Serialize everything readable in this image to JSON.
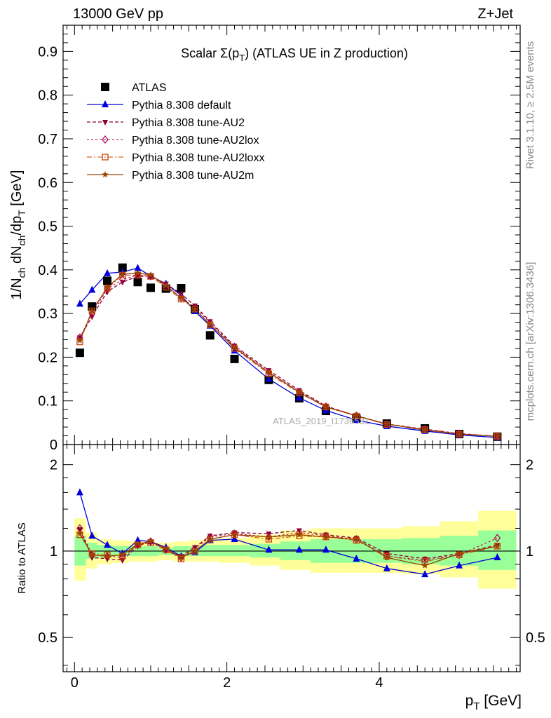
{
  "header": {
    "left": "13000 GeV pp",
    "right": "Z+Jet"
  },
  "side_labels": {
    "rivet": "Rivet 3.1.10, ≥ 2.5M events",
    "mcplots": "mcplots.cern.ch [arXiv:1306.3436]"
  },
  "watermark": "ATLAS_2019_I1736531",
  "colors": {
    "atlas": "#000000",
    "default": "#0000dd",
    "au2": "#880033",
    "au2lox": "#aa0055",
    "au2loxx": "#cc4400",
    "au2m": "#994400",
    "band_yellow": "#ffff99",
    "band_green": "#99ff99"
  },
  "chart_data": [
    {
      "type": "scatter",
      "title": "Scalar Σ(p_T) (ATLAS UE in Z production)",
      "title_parts": {
        "pre": "Scalar Σ(p",
        "sub": "T",
        "post": ") (ATLAS UE in Z production)"
      },
      "ylabel": "1/N_ch dN_ch/dp_T [GeV]",
      "ylabel_parts": {
        "a": "1/N",
        "a_sub": "ch",
        "b": " dN",
        "b_sub": "ch",
        "c": "/dp",
        "c_sub": "T",
        "d": " [GeV]"
      },
      "xlim": [
        -0.15,
        5.85
      ],
      "ylim": [
        0,
        0.96
      ],
      "yticks": [
        0,
        0.1,
        0.2,
        0.3,
        0.4,
        0.5,
        0.6,
        0.7,
        0.8,
        0.9
      ],
      "ytick_labels": [
        "0",
        "0.1",
        "0.2",
        "0.3",
        "0.4",
        "0.5",
        "0.6",
        "0.7",
        "0.8",
        "0.9"
      ],
      "legend_position": "top-left",
      "x": [
        0.07,
        0.23,
        0.43,
        0.63,
        0.83,
        1.0,
        1.2,
        1.4,
        1.58,
        1.78,
        2.1,
        2.55,
        2.95,
        3.3,
        3.7,
        4.1,
        4.6,
        5.05,
        5.55
      ],
      "series": [
        {
          "name": "ATLAS",
          "key": "atlas",
          "marker": "square",
          "values": [
            0.21,
            0.316,
            0.375,
            0.405,
            0.372,
            0.359,
            0.357,
            0.358,
            0.31,
            0.25,
            0.196,
            0.148,
            0.106,
            0.077,
            0.06,
            0.048,
            0.037,
            0.024,
            0.018
          ]
        },
        {
          "name": "Pythia 8.308 default",
          "key": "default",
          "marker": "triangle",
          "values": [
            0.322,
            0.354,
            0.392,
            0.395,
            0.404,
            0.386,
            0.368,
            0.342,
            0.305,
            0.272,
            0.215,
            0.15,
            0.107,
            0.078,
            0.056,
            0.042,
            0.031,
            0.022,
            0.016
          ]
        },
        {
          "name": "Pythia 8.308 tune-AU2",
          "key": "au2",
          "marker": "triangle-down",
          "values": [
            0.245,
            0.293,
            0.35,
            0.372,
            0.385,
            0.386,
            0.368,
            0.345,
            0.318,
            0.282,
            0.226,
            0.17,
            0.124,
            0.088,
            0.066,
            0.047,
            0.035,
            0.025,
            0.019
          ]
        },
        {
          "name": "Pythia 8.308 tune-AU2lox",
          "key": "au2lox",
          "marker": "diamond",
          "values": [
            0.245,
            0.3,
            0.356,
            0.378,
            0.388,
            0.385,
            0.362,
            0.336,
            0.314,
            0.279,
            0.224,
            0.166,
            0.121,
            0.087,
            0.066,
            0.046,
            0.035,
            0.025,
            0.019
          ]
        },
        {
          "name": "Pythia 8.308 tune-AU2loxx",
          "key": "au2loxx",
          "marker": "square-open",
          "values": [
            0.235,
            0.306,
            0.358,
            0.388,
            0.388,
            0.385,
            0.36,
            0.333,
            0.31,
            0.274,
            0.22,
            0.162,
            0.118,
            0.086,
            0.065,
            0.046,
            0.034,
            0.024,
            0.019
          ]
        },
        {
          "name": "Pythia 8.308 tune-AU2m",
          "key": "au2m",
          "marker": "star",
          "values": [
            0.238,
            0.306,
            0.36,
            0.39,
            0.393,
            0.388,
            0.364,
            0.336,
            0.31,
            0.275,
            0.222,
            0.165,
            0.12,
            0.086,
            0.066,
            0.047,
            0.033,
            0.024,
            0.019
          ]
        }
      ]
    },
    {
      "type": "line",
      "ylabel": "Ratio to ATLAS",
      "xlabel": "p_T [GeV]",
      "xlabel_parts": {
        "pre": "p",
        "sub": "T",
        "post": " [GeV]"
      },
      "xlim": [
        -0.15,
        5.85
      ],
      "ylim": [
        0.38,
        2.35
      ],
      "yscale": "log",
      "yticks": [
        0.5,
        1,
        2
      ],
      "ytick_labels": [
        "0.5",
        "1",
        "2"
      ],
      "xticks": [
        0,
        2,
        4
      ],
      "xtick_labels": [
        "0",
        "2",
        "4"
      ],
      "reference_line": 1,
      "bin_edges": [
        0,
        0.15,
        0.3,
        0.5,
        0.7,
        0.9,
        1.1,
        1.3,
        1.5,
        1.7,
        1.9,
        2.3,
        2.7,
        3.1,
        3.5,
        3.9,
        4.3,
        4.8,
        5.3,
        5.8
      ],
      "band_yellow": [
        [
          0.79,
          1.3
        ],
        [
          0.87,
          1.16
        ],
        [
          0.9,
          1.1
        ],
        [
          0.91,
          1.09
        ],
        [
          0.92,
          1.08
        ],
        [
          0.92,
          1.07
        ],
        [
          0.93,
          1.07
        ],
        [
          0.92,
          1.08
        ],
        [
          0.92,
          1.09
        ],
        [
          0.92,
          1.1
        ],
        [
          0.91,
          1.11
        ],
        [
          0.89,
          1.14
        ],
        [
          0.86,
          1.18
        ],
        [
          0.84,
          1.2
        ],
        [
          0.84,
          1.2
        ],
        [
          0.84,
          1.2
        ],
        [
          0.83,
          1.22
        ],
        [
          0.81,
          1.27
        ],
        [
          0.74,
          1.38
        ]
      ],
      "band_green": [
        [
          0.89,
          1.13
        ],
        [
          0.94,
          1.07
        ],
        [
          0.95,
          1.05
        ],
        [
          0.96,
          1.04
        ],
        [
          0.96,
          1.04
        ],
        [
          0.96,
          1.04
        ],
        [
          0.97,
          1.03
        ],
        [
          0.96,
          1.04
        ],
        [
          0.96,
          1.04
        ],
        [
          0.96,
          1.05
        ],
        [
          0.96,
          1.05
        ],
        [
          0.95,
          1.06
        ],
        [
          0.93,
          1.08
        ],
        [
          0.91,
          1.1
        ],
        [
          0.91,
          1.1
        ],
        [
          0.91,
          1.1
        ],
        [
          0.9,
          1.11
        ],
        [
          0.89,
          1.13
        ],
        [
          0.86,
          1.18
        ]
      ],
      "series": [
        {
          "key": "default",
          "marker": "triangle",
          "values": [
            1.6,
            1.13,
            1.05,
            0.98,
            1.09,
            1.08,
            1.03,
            0.96,
            0.99,
            1.09,
            1.1,
            1.01,
            1.01,
            1.01,
            0.94,
            0.87,
            0.83,
            0.89,
            0.95
          ]
        },
        {
          "key": "au2",
          "marker": "triangle-down",
          "values": [
            1.19,
            0.95,
            0.94,
            0.93,
            1.04,
            1.08,
            1.01,
            0.96,
            1.03,
            1.13,
            1.16,
            1.15,
            1.18,
            1.14,
            1.11,
            0.98,
            0.94,
            0.98,
            1.05
          ]
        },
        {
          "key": "au2lox",
          "marker": "diamond",
          "values": [
            1.2,
            0.97,
            0.96,
            0.95,
            1.05,
            1.08,
            1.01,
            0.95,
            1.02,
            1.12,
            1.15,
            1.12,
            1.16,
            1.13,
            1.1,
            0.96,
            0.93,
            0.97,
            1.11
          ]
        },
        {
          "key": "au2loxx",
          "marker": "square-open",
          "values": [
            1.14,
            0.98,
            0.97,
            0.96,
            1.05,
            1.07,
            1.01,
            0.94,
            1.0,
            1.1,
            1.14,
            1.1,
            1.13,
            1.12,
            1.09,
            0.96,
            0.92,
            0.97,
            1.04
          ]
        },
        {
          "key": "au2m",
          "marker": "star",
          "values": [
            1.15,
            0.97,
            0.96,
            0.97,
            1.06,
            1.08,
            1.02,
            0.95,
            1.0,
            1.1,
            1.14,
            1.12,
            1.14,
            1.12,
            1.1,
            0.95,
            0.89,
            0.98,
            1.04
          ]
        }
      ]
    }
  ]
}
